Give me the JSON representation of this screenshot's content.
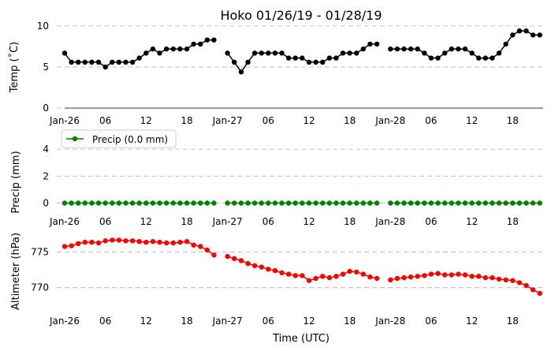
{
  "chart_data": {
    "type": "line",
    "title": "Hoko 01/26/19 - 01/28/19",
    "xlabel": "Time (UTC)",
    "x_tick_labels": [
      "Jan-26",
      "06",
      "12",
      "18",
      "Jan-27",
      "06",
      "12",
      "18",
      "Jan-28",
      "06",
      "12",
      "18"
    ],
    "x_range_hours": [
      0,
      70.5
    ],
    "grid": "horizontal dashed",
    "panels": [
      {
        "name": "temp",
        "ylabel": "Temp (˚C)",
        "ylim": [
          0,
          10
        ],
        "yticks": [
          0,
          5,
          10
        ],
        "color": "#000000",
        "series": [
          {
            "hours": [
              0,
              1,
              2,
              3,
              4,
              5,
              6,
              7,
              8,
              9,
              10,
              11,
              12,
              13,
              14,
              15,
              16,
              17,
              18,
              19,
              20,
              21,
              22,
              23,
              24,
              25,
              26,
              27,
              28,
              29,
              30,
              31,
              32,
              33,
              34,
              35,
              36,
              37,
              38,
              39,
              40,
              41,
              42,
              43,
              44,
              45,
              46,
              47,
              48,
              49,
              50,
              51,
              52,
              53,
              54,
              55,
              56,
              57,
              58,
              59,
              60,
              61,
              62,
              63,
              64,
              65,
              66,
              67,
              68,
              69,
              70
            ],
            "values": [
              6.7,
              5.6,
              5.6,
              5.6,
              5.6,
              5.6,
              5.0,
              5.6,
              5.6,
              5.6,
              5.6,
              6.1,
              6.7,
              7.2,
              6.7,
              7.2,
              7.2,
              7.2,
              7.2,
              7.8,
              7.8,
              8.3,
              8.3,
              null,
              6.7,
              5.6,
              4.4,
              5.6,
              6.7,
              6.7,
              6.7,
              6.7,
              6.7,
              6.1,
              6.1,
              6.1,
              5.6,
              5.6,
              5.6,
              6.1,
              6.1,
              6.7,
              6.7,
              6.7,
              7.2,
              7.8,
              7.8,
              null,
              7.2,
              7.2,
              7.2,
              7.2,
              7.2,
              6.7,
              6.1,
              6.1,
              6.7,
              7.2,
              7.2,
              7.2,
              6.7,
              6.1,
              6.1,
              6.1,
              6.7,
              7.8,
              8.9,
              9.4,
              9.4,
              8.9,
              8.9
            ]
          }
        ]
      },
      {
        "name": "precip",
        "ylabel": "Precip (mm)",
        "ylim": [
          -0.5,
          5
        ],
        "yticks": [
          0,
          2,
          4
        ],
        "color": "#008000",
        "legend": "Precip (0.0 mm)",
        "legend_position": "upper-left",
        "series": [
          {
            "hours": [
              0,
              1,
              2,
              3,
              4,
              5,
              6,
              7,
              8,
              9,
              10,
              11,
              12,
              13,
              14,
              15,
              16,
              17,
              18,
              19,
              20,
              21,
              22,
              23,
              24,
              25,
              26,
              27,
              28,
              29,
              30,
              31,
              32,
              33,
              34,
              35,
              36,
              37,
              38,
              39,
              40,
              41,
              42,
              43,
              44,
              45,
              46,
              47,
              48,
              49,
              50,
              51,
              52,
              53,
              54,
              55,
              56,
              57,
              58,
              59,
              60,
              61,
              62,
              63,
              64,
              65,
              66,
              67,
              68,
              69,
              70
            ],
            "values": [
              0,
              0,
              0,
              0,
              0,
              0,
              0,
              0,
              0,
              0,
              0,
              0,
              0,
              0,
              0,
              0,
              0,
              0,
              0,
              0,
              0,
              0,
              0,
              null,
              0,
              0,
              0,
              0,
              0,
              0,
              0,
              0,
              0,
              0,
              0,
              0,
              0,
              0,
              0,
              0,
              0,
              0,
              0,
              0,
              0,
              0,
              0,
              null,
              0,
              0,
              0,
              0,
              0,
              0,
              0,
              0,
              0,
              0,
              0,
              0,
              0,
              0,
              0,
              0,
              0,
              0,
              0,
              0,
              0,
              0,
              0
            ]
          }
        ]
      },
      {
        "name": "altimeter",
        "ylabel": "Altimeter (hPa)",
        "ylim": [
          766.3,
          778.3
        ],
        "yticks": [
          770,
          775
        ],
        "color": "#ff0000",
        "series": [
          {
            "hours": [
              0,
              1,
              2,
              3,
              4,
              5,
              6,
              7,
              8,
              9,
              10,
              11,
              12,
              13,
              14,
              15,
              16,
              17,
              18,
              19,
              20,
              21,
              22,
              23,
              24,
              25,
              26,
              27,
              28,
              29,
              30,
              31,
              32,
              33,
              34,
              35,
              36,
              37,
              38,
              39,
              40,
              41,
              42,
              43,
              44,
              45,
              46,
              47,
              48,
              49,
              50,
              51,
              52,
              53,
              54,
              55,
              56,
              57,
              58,
              59,
              60,
              61,
              62,
              63,
              64,
              65,
              66,
              67,
              68,
              69,
              70
            ],
            "values": [
              775.8,
              775.9,
              776.2,
              776.4,
              776.4,
              776.3,
              776.6,
              776.7,
              776.7,
              776.6,
              776.6,
              776.5,
              776.4,
              776.5,
              776.4,
              776.3,
              776.3,
              776.4,
              776.5,
              776.0,
              775.8,
              775.3,
              774.6,
              null,
              774.4,
              774.1,
              773.8,
              773.4,
              773.1,
              772.9,
              772.6,
              772.4,
              772.1,
              771.9,
              771.7,
              771.7,
              771.0,
              771.3,
              771.6,
              771.4,
              771.6,
              771.9,
              772.3,
              772.2,
              771.9,
              771.5,
              771.3,
              null,
              771.1,
              771.3,
              771.4,
              771.5,
              771.6,
              771.7,
              771.9,
              772.0,
              771.8,
              771.8,
              771.9,
              771.8,
              771.6,
              771.6,
              771.4,
              771.4,
              771.2,
              771.1,
              771.0,
              770.7,
              770.3,
              769.7,
              769.2
            ]
          }
        ]
      }
    ]
  }
}
